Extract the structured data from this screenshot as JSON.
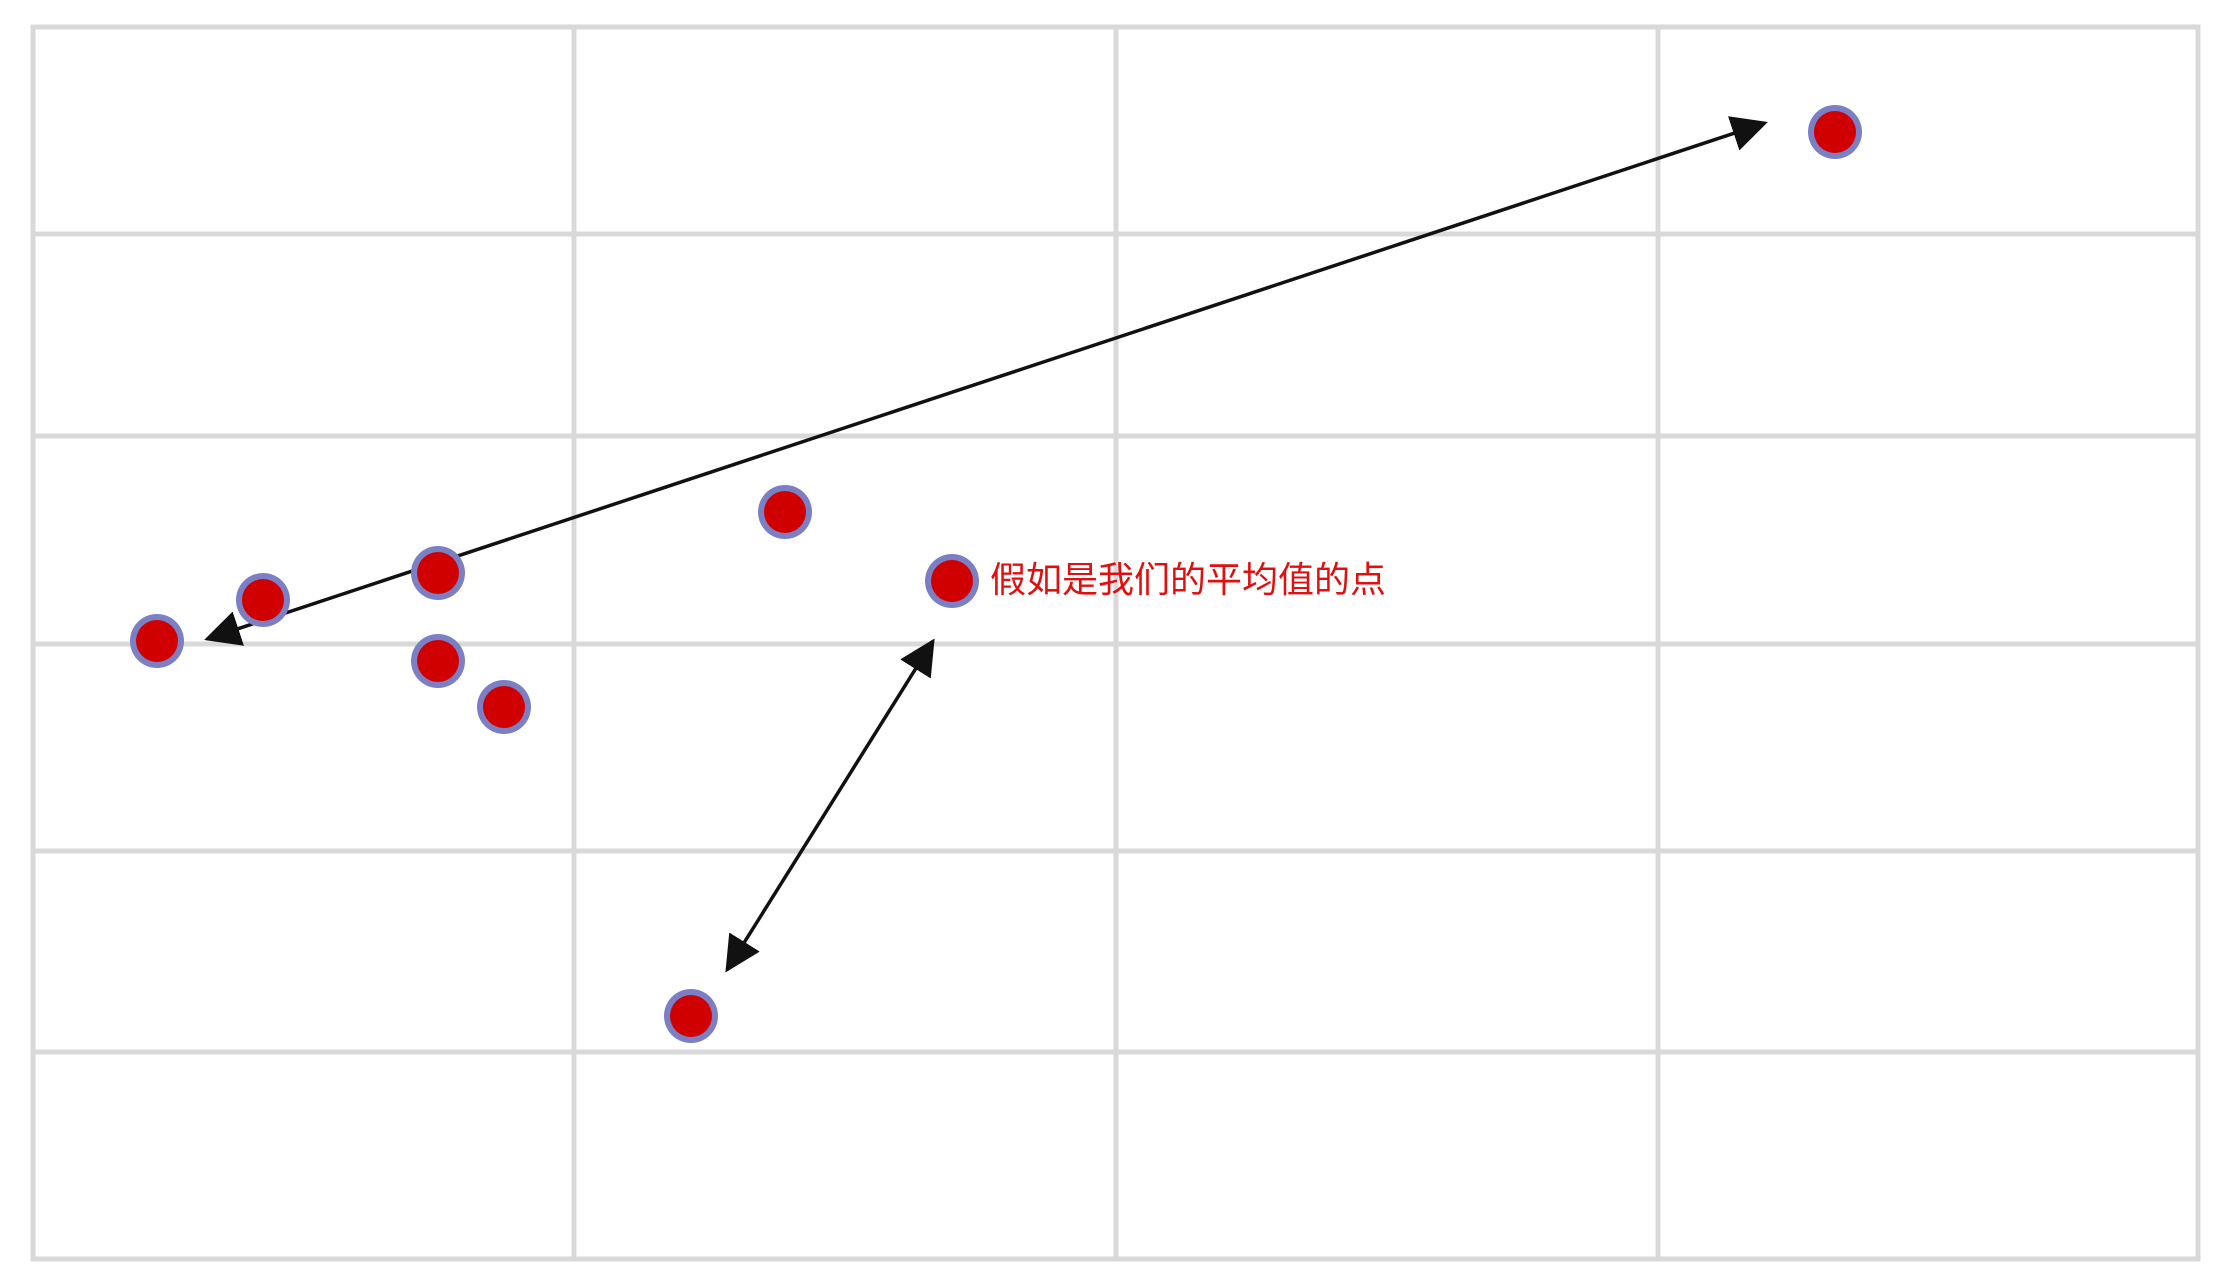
{
  "diagram": {
    "grid": {
      "columns": 4,
      "rows": 6
    },
    "points": [
      {
        "id": "outlier-top-right"
      },
      {
        "id": "leftmost-point"
      },
      {
        "id": "left-cluster-point-1"
      },
      {
        "id": "left-cluster-point-2"
      },
      {
        "id": "left-cluster-point-3"
      },
      {
        "id": "left-cluster-point-4"
      },
      {
        "id": "center-point"
      },
      {
        "id": "mean-point"
      },
      {
        "id": "bottom-point"
      }
    ],
    "annotation": {
      "text": "假如是我们的平均值的点"
    },
    "arrows": [
      {
        "id": "long-distance-arrow",
        "connects": [
          "leftmost-point",
          "outlier-top-right"
        ],
        "heads": "both"
      },
      {
        "id": "short-distance-arrow",
        "connects": [
          "mean-point",
          "bottom-point"
        ],
        "heads": "both"
      }
    ],
    "colors": {
      "point_fill": "#d10000",
      "point_outline": "#7b7fc4",
      "annotation": "#e01010",
      "grid": "#d9d9d9",
      "arrow": "#111111"
    }
  }
}
